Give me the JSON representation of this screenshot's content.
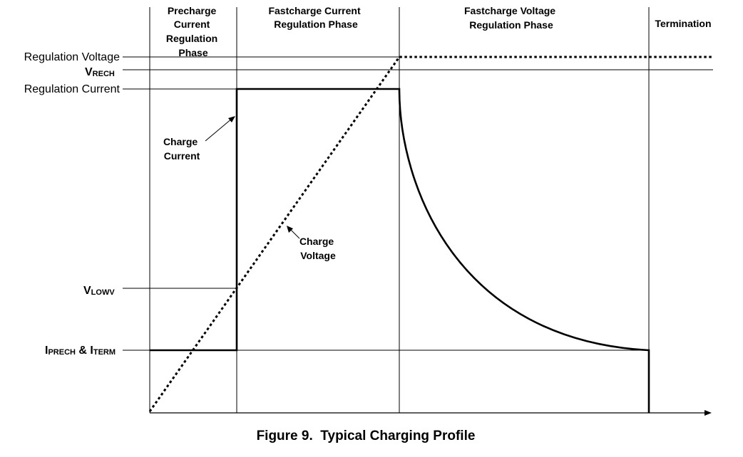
{
  "caption": "Figure 9.  Typical Charging Profile",
  "phases": {
    "precharge": [
      "Precharge",
      "Current",
      "Regulation",
      "Phase"
    ],
    "fastcharge_current": [
      "Fastcharge Current",
      "Regulation Phase"
    ],
    "fastcharge_voltage": [
      "Fastcharge Voltage",
      "Regulation Phase"
    ],
    "termination": [
      "Termination"
    ]
  },
  "levels": {
    "regulation_voltage": "Regulation Voltage",
    "vrech_main": "V",
    "vrech_sub": "RECH",
    "regulation_current": "Regulation Current",
    "vlowv_main": "V",
    "vlowv_sub": "LOWV",
    "iprech_main": "I",
    "iprech_sub": "PRECH",
    "iprech_amp": " & I",
    "iterm_sub": "TERM"
  },
  "annotations": {
    "charge_current": [
      "Charge",
      "Current"
    ],
    "charge_voltage": [
      "Charge",
      "Voltage"
    ]
  }
}
